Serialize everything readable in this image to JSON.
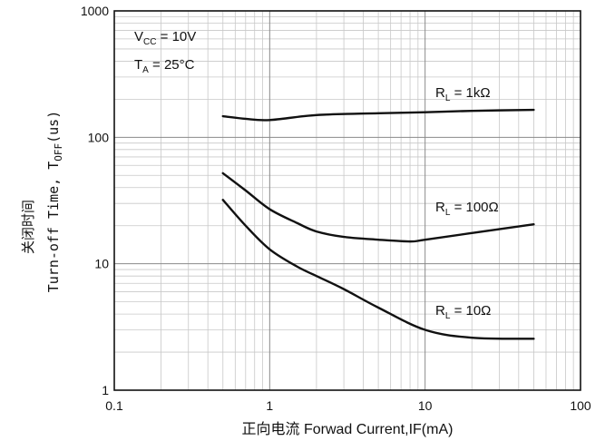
{
  "chart_data": {
    "type": "line",
    "x_scale": "log",
    "y_scale": "log",
    "xlim": [
      0.1,
      100
    ],
    "ylim": [
      1,
      1000
    ],
    "grid": true,
    "xlabel": "正向电流 Forwad Current,IF(mA)",
    "ylabel_cn": "关闭时间",
    "ylabel_main": "Turn-off Time, T",
    "ylabel_sub": "OFF",
    "ylabel_unit": "(us)",
    "x_ticks": [
      "0.1",
      "1",
      "10",
      "100"
    ],
    "y_ticks": [
      "1",
      "10",
      "100",
      "1000"
    ],
    "conditions": [
      {
        "main": "V",
        "sub": "CC",
        "rest": " = 10V"
      },
      {
        "main": "T",
        "sub": "A",
        "rest": " = 25°C"
      }
    ],
    "series": [
      {
        "label_main": "R",
        "label_sub": "L",
        "label_rest": " = 1kΩ",
        "x": [
          0.5,
          0.7,
          1,
          2,
          5,
          10,
          20,
          50
        ],
        "y": [
          147,
          140,
          137,
          150,
          155,
          158,
          162,
          165
        ]
      },
      {
        "label_main": "R",
        "label_sub": "L",
        "label_rest": " = 100Ω",
        "x": [
          0.5,
          0.7,
          1,
          1.5,
          2,
          3,
          5,
          8,
          10,
          20,
          50
        ],
        "y": [
          52,
          38,
          27,
          21,
          18,
          16.3,
          15.5,
          15,
          15.5,
          17.5,
          20.5
        ]
      },
      {
        "label_main": "R",
        "label_sub": "L",
        "label_rest": " = 10Ω",
        "x": [
          0.5,
          0.7,
          1,
          1.5,
          2,
          3,
          5,
          10,
          20,
          50
        ],
        "y": [
          32,
          20,
          13,
          9.5,
          8,
          6.3,
          4.5,
          3.0,
          2.6,
          2.55
        ]
      }
    ]
  }
}
